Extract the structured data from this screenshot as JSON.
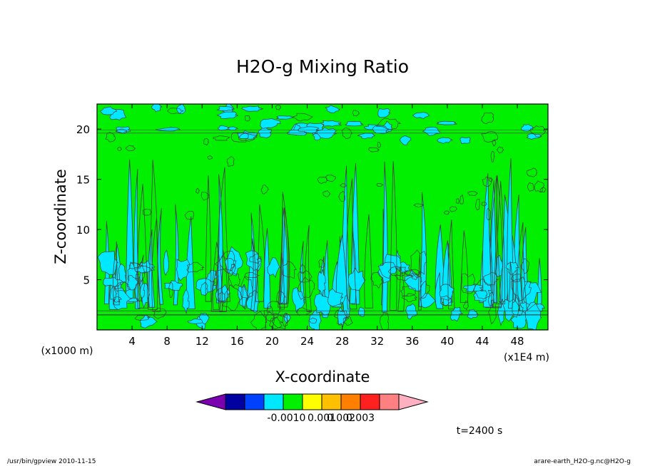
{
  "chart_data": {
    "type": "heatmap",
    "subtype": "filled-contour",
    "title": "H2O-g Mixing Ratio",
    "xlabel": "X-coordinate",
    "ylabel": "Z-coordinate",
    "x_unit": "(x1E4 m)",
    "y_unit": "(x1000 m)",
    "xlim": [
      0,
      51.5
    ],
    "ylim": [
      0,
      22.5
    ],
    "x_ticks": [
      4,
      8,
      12,
      16,
      20,
      24,
      28,
      32,
      36,
      40,
      44,
      48
    ],
    "y_ticks": [
      5,
      10,
      15,
      20
    ],
    "grid": false,
    "colorbar": {
      "orientation": "horizontal",
      "placement": "bottom",
      "levels": [
        -0.001,
        0,
        0.001,
        0.002,
        0.003
      ],
      "labels": [
        "-0.001",
        "0",
        "0.001",
        "0.002",
        "0.003"
      ],
      "colors": [
        "#7a00b0",
        "#0000a0",
        "#0040ff",
        "#00e8ff",
        "#00f000",
        "#ffff00",
        "#ffc000",
        "#ff8000",
        "#ff2020",
        "#ff8080",
        "#ffb0c0"
      ]
    },
    "field": {
      "dominant_level_color": "#00f000",
      "secondary_level_color": "#00e8ff",
      "contour_line_color": "#404040"
    },
    "time_label": "t=2400 s"
  },
  "footer": {
    "left": "/usr/bin/gpview   2010-11-15",
    "right": "arare-earth_H2O-g.nc@H2O-g"
  }
}
